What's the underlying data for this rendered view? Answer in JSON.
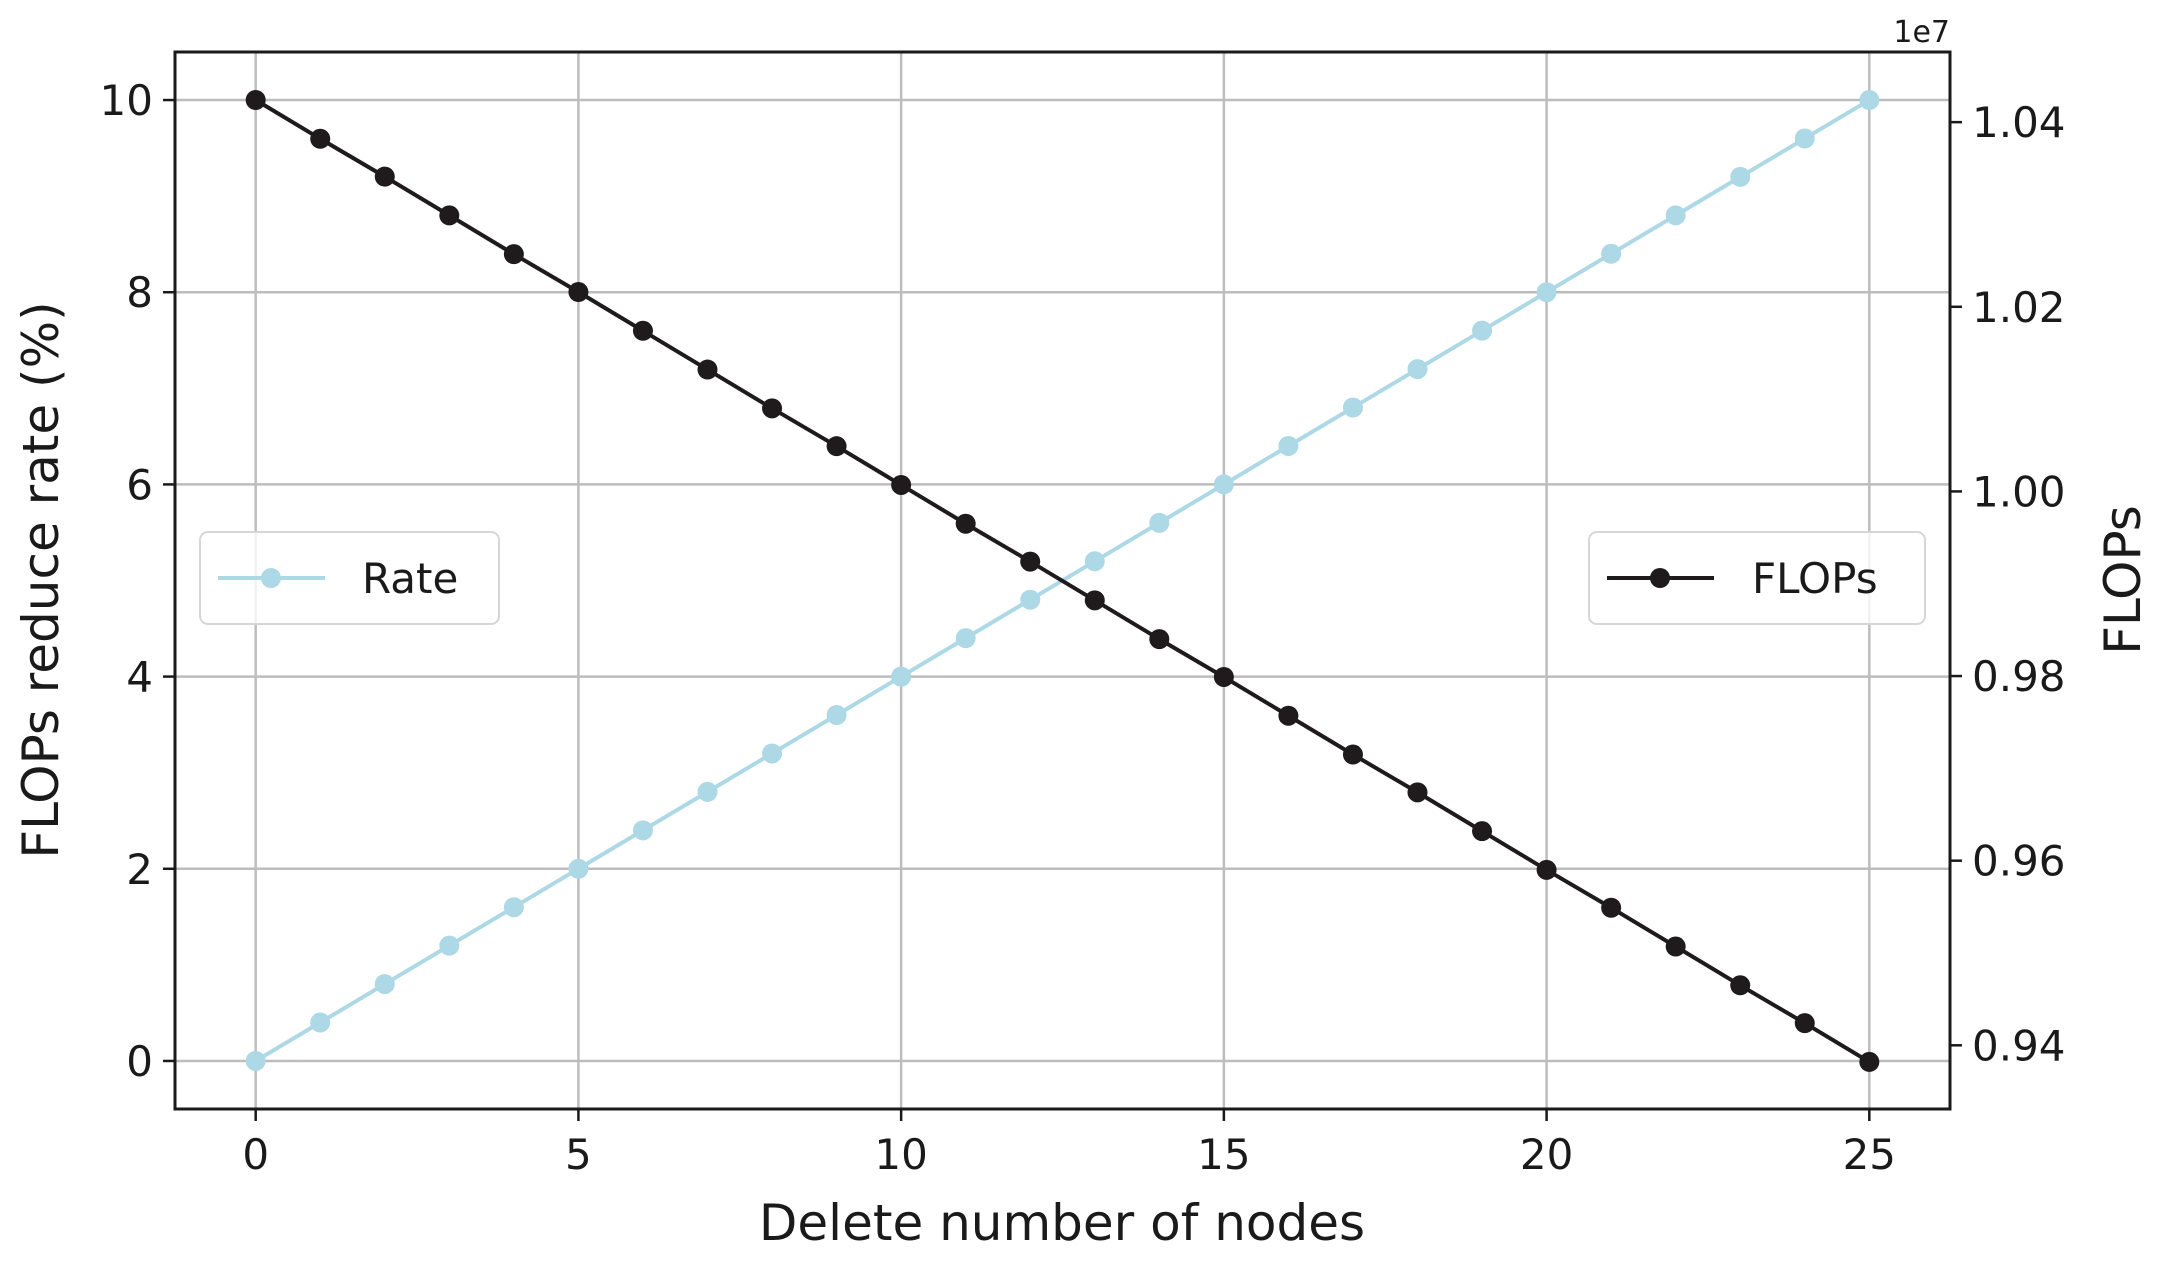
{
  "chart_data": {
    "type": "line",
    "title": "",
    "xlabel": "Delete number of nodes",
    "ylabel_left": "FLOPs reduce rate (%)",
    "ylabel_right": "FLOPs",
    "right_axis_offset_text": "1e7",
    "xlim": [
      -1.25,
      26.25
    ],
    "ylim_left": [
      -0.5,
      10.5
    ],
    "ylim_right": [
      0.9331,
      1.0476
    ],
    "x_ticks": [
      "0",
      "5",
      "10",
      "15",
      "20",
      "25"
    ],
    "y_ticks_left": [
      "0",
      "2",
      "4",
      "6",
      "8",
      "10"
    ],
    "y_ticks_right": [
      "0.94",
      "0.96",
      "0.98",
      "1.00",
      "1.02",
      "1.04"
    ],
    "grid": true,
    "x": [
      0,
      1,
      2,
      3,
      4,
      5,
      6,
      7,
      8,
      9,
      10,
      11,
      12,
      13,
      14,
      15,
      16,
      17,
      18,
      19,
      20,
      21,
      22,
      23,
      24,
      25
    ],
    "series": [
      {
        "name": "Rate",
        "axis": "left",
        "color": "#add8e6",
        "legend_placement": "center-left",
        "values": [
          0,
          0.4,
          0.8,
          1.2,
          1.6,
          2.0,
          2.4,
          2.8,
          3.2,
          3.6,
          4.0,
          4.4,
          4.8,
          5.2,
          5.6,
          6.0,
          6.4,
          6.8,
          7.2,
          7.6,
          8.0,
          8.4,
          8.8,
          9.2,
          9.6,
          10.0
        ]
      },
      {
        "name": "FLOPs",
        "axis": "right",
        "unit_scale": "1e7",
        "color": "#1f1a1c",
        "legend_placement": "center-right",
        "values": [
          1.0424,
          1.0382,
          1.0341,
          1.0299,
          1.0257,
          1.0216,
          1.0174,
          1.0132,
          1.009,
          1.0049,
          1.0007,
          0.9965,
          0.9924,
          0.9882,
          0.984,
          0.9799,
          0.9757,
          0.9715,
          0.9674,
          0.9632,
          0.959,
          0.9549,
          0.9507,
          0.9465,
          0.9424,
          0.9382
        ]
      }
    ]
  }
}
